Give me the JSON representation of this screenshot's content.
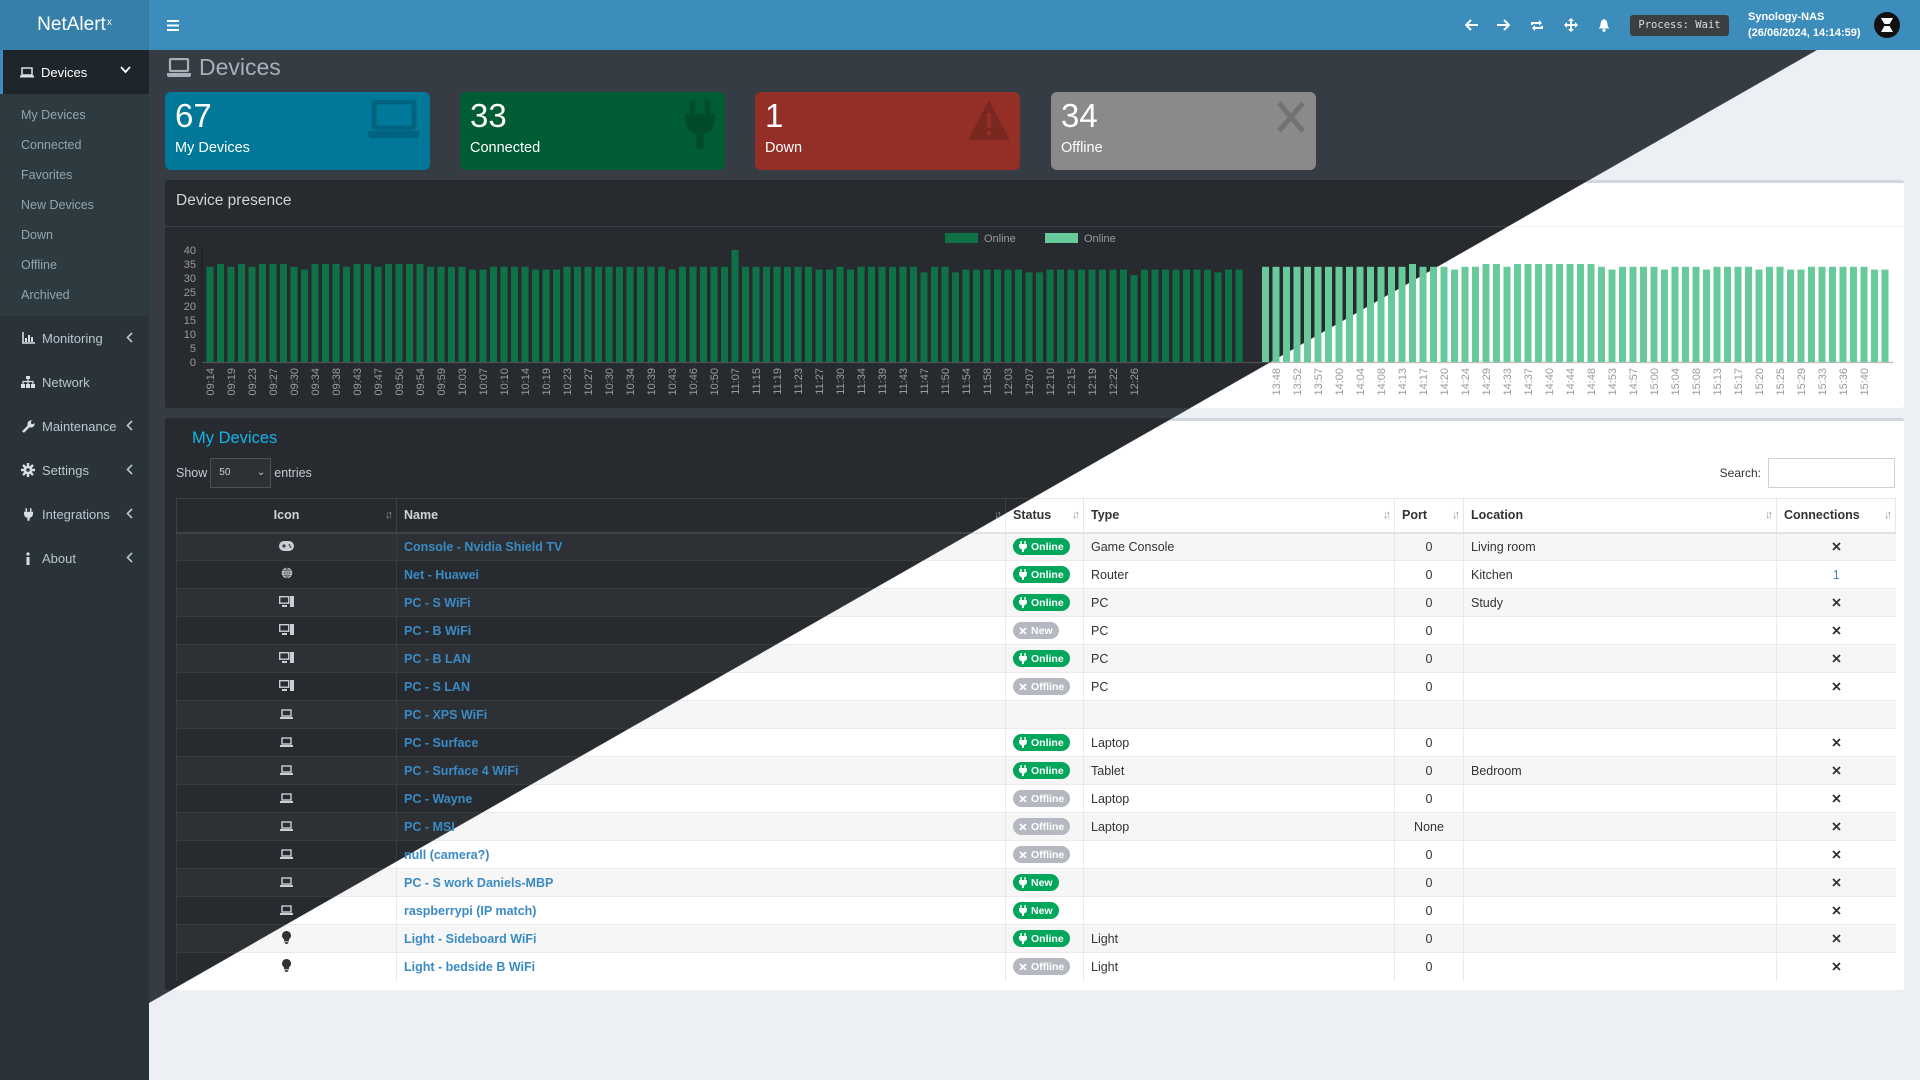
{
  "app": {
    "logo": "NetAlert",
    "logo_sup": "x"
  },
  "topbar": {
    "process": "Process: Wait",
    "host": "Synology-NAS",
    "datetime": "(26/06/2024, 14:14:59)"
  },
  "sidebar": {
    "devices": {
      "label": "Devices",
      "items": [
        "My Devices",
        "Connected",
        "Favorites",
        "New Devices",
        "Down",
        "Offline",
        "Archived"
      ]
    },
    "menu": [
      {
        "label": "Monitoring",
        "icon": "chart-icon",
        "chevron": true
      },
      {
        "label": "Network",
        "icon": "network-icon",
        "chevron": false
      },
      {
        "label": "Maintenance",
        "icon": "wrench-icon",
        "chevron": true
      },
      {
        "label": "Settings",
        "icon": "gear-icon",
        "chevron": true
      },
      {
        "label": "Integrations",
        "icon": "plug-icon",
        "chevron": true
      },
      {
        "label": "About",
        "icon": "info-icon",
        "chevron": true
      }
    ]
  },
  "page": {
    "title": "Devices"
  },
  "summary": [
    {
      "count": "67",
      "label": "My Devices",
      "color": "#01789a",
      "icon": "laptop-icon"
    },
    {
      "count": "33",
      "label": "Connected",
      "color": "#005c33",
      "icon": "plug-icon"
    },
    {
      "count": "1",
      "label": "Down",
      "color": "#932f27",
      "icon": "warning-icon"
    },
    {
      "count": "34",
      "label": "Offline",
      "color": "#8a8a8a",
      "icon": "close-icon"
    }
  ],
  "chart_data": [
    {
      "type": "bar",
      "title": "Device presence",
      "legend": [
        "Online"
      ],
      "legend_position": "top-center",
      "series_color": "#0f7247",
      "ylim": [
        0,
        40
      ],
      "yticks": [
        0,
        5,
        10,
        15,
        20,
        25,
        30,
        35,
        40
      ],
      "categories": [
        "09:14",
        "",
        "09:19",
        "",
        "09:23",
        "",
        "09:27",
        "",
        "09:30",
        "",
        "09:34",
        "",
        "09:38",
        "",
        "09:43",
        "",
        "09:47",
        "",
        "09:50",
        "",
        "09:54",
        "",
        "09:59",
        "",
        "10:03",
        "",
        "10:07",
        "",
        "10:10",
        "",
        "10:14",
        "",
        "10:19",
        "",
        "10:23",
        "",
        "10:27",
        "",
        "10:30",
        "",
        "10:34",
        "",
        "10:39",
        "",
        "10:43",
        "",
        "10:46",
        "",
        "10:50",
        "",
        "11:07",
        "",
        "11:15",
        "",
        "11:19",
        "",
        "11:23",
        "",
        "11:27",
        "",
        "11:30",
        "",
        "11:34",
        "",
        "11:39",
        "",
        "11:43",
        "",
        "11:47",
        "",
        "11:50",
        "",
        "11:54",
        "",
        "11:58",
        "",
        "12:03",
        "",
        "12:07",
        "",
        "12:10",
        "",
        "12:15",
        "",
        "12:19",
        "",
        "12:22",
        "",
        "12:26",
        "",
        "",
        "",
        "",
        "",
        "",
        "",
        "",
        "",
        ""
      ],
      "values": [
        34,
        35,
        34,
        35,
        34,
        35,
        35,
        35,
        34,
        33,
        35,
        35,
        35,
        34,
        35,
        35,
        34,
        35,
        35,
        35,
        35,
        34,
        34,
        34,
        34,
        33,
        33,
        34,
        34,
        34,
        34,
        33,
        33,
        33,
        34,
        34,
        34,
        34,
        34,
        34,
        34,
        34,
        34,
        34,
        33,
        34,
        34,
        34,
        34,
        34,
        40,
        34,
        34,
        34,
        34,
        34,
        34,
        34,
        33,
        33,
        34,
        33,
        34,
        34,
        34,
        34,
        34,
        34,
        32,
        34,
        34,
        32,
        33,
        33,
        33,
        33,
        33,
        33,
        32,
        32,
        33,
        33,
        33,
        33,
        33,
        33,
        33,
        33,
        31,
        33,
        33,
        33,
        33,
        33,
        33,
        33,
        32,
        33,
        33
      ]
    },
    {
      "type": "bar",
      "title": "Device presence",
      "legend": [
        "Online"
      ],
      "series_color": "#68c99a",
      "ylim": [
        0,
        40
      ],
      "categories": [
        "",
        "13:48",
        "",
        "13:52",
        "",
        "13:57",
        "",
        "14:00",
        "",
        "14:04",
        "",
        "14:08",
        "",
        "14:13",
        "",
        "14:17",
        "",
        "14:20",
        "",
        "14:24",
        "",
        "14:29",
        "",
        "14:33",
        "",
        "14:37",
        "",
        "14:40",
        "",
        "14:44",
        "",
        "14:48",
        "",
        "14:53",
        "",
        "14:57",
        "",
        "15:00",
        "",
        "15:04",
        "",
        "15:08",
        "",
        "15:13",
        "",
        "15:17",
        "",
        "15:20",
        "",
        "15:25",
        "",
        "15:29",
        "",
        "15:33",
        "",
        "15:36",
        "",
        "15:40",
        "",
        ""
      ],
      "values": [
        34,
        34,
        34,
        34,
        34,
        34,
        34,
        34,
        34,
        34,
        34,
        34,
        34,
        34,
        35,
        34,
        34,
        34,
        33,
        34,
        34,
        35,
        35,
        34,
        35,
        35,
        35,
        35,
        35,
        35,
        35,
        35,
        34,
        33,
        34,
        34,
        34,
        34,
        33,
        34,
        34,
        34,
        33,
        34,
        34,
        34,
        34,
        33,
        34,
        34,
        33,
        33,
        34,
        34,
        34,
        34,
        34,
        34,
        33,
        33
      ]
    }
  ],
  "table": {
    "title": "My Devices",
    "show_label": "Show",
    "page_size": "50",
    "entries_label": "entries",
    "search_label": "Search:",
    "search_value": "",
    "columns": [
      "Icon",
      "Name",
      "Status",
      "Type",
      "Port",
      "Location",
      "Connections"
    ],
    "rows": [
      {
        "icon": "gamepad",
        "name": "Console - Nvidia Shield TV",
        "status": "Online",
        "connected": true,
        "type": "Game Console",
        "port": "0",
        "location": "Living room",
        "connections": ""
      },
      {
        "icon": "globe",
        "name": "Net - Huawei",
        "status": "Online",
        "connected": true,
        "type": "Router",
        "port": "0",
        "location": "Kitchen",
        "connections": "1"
      },
      {
        "icon": "desktop",
        "name": "PC - S WiFi",
        "status": "Online",
        "connected": true,
        "type": "PC",
        "port": "0",
        "location": "Study",
        "connections": ""
      },
      {
        "icon": "desktop",
        "name": "PC - B WiFi",
        "status": "New",
        "connected": false,
        "type": "PC",
        "port": "0",
        "location": "",
        "connections": ""
      },
      {
        "icon": "desktop",
        "name": "PC - B LAN",
        "status": "Online",
        "connected": true,
        "type": "PC",
        "port": "0",
        "location": "",
        "connections": ""
      },
      {
        "icon": "desktop",
        "name": "PC - S LAN",
        "status": "Offline",
        "connected": false,
        "type": "PC",
        "port": "0",
        "location": "",
        "connections": ""
      },
      {
        "icon": "laptop",
        "name": "PC - XPS WiFi"
      },
      {
        "icon": "laptop",
        "name": "PC - Surface",
        "status": "Online",
        "connected": true,
        "type": "Laptop",
        "port": "0",
        "location": "",
        "connections": ""
      },
      {
        "icon": "laptop",
        "name": "PC - Surface 4 WiFi",
        "status": "Online",
        "connected": true,
        "type": "Tablet",
        "port": "0",
        "location": "Bedroom",
        "connections": ""
      },
      {
        "icon": "laptop",
        "name": "PC - Wayne",
        "status": "Offline",
        "connected": false,
        "type": "Laptop",
        "port": "0",
        "location": "",
        "connections": ""
      },
      {
        "icon": "laptop",
        "name": "PC - MSI",
        "status": "Offline",
        "connected": false,
        "type": "Laptop",
        "port": "None",
        "location": "",
        "connections": ""
      },
      {
        "icon": "laptop",
        "name": "null (camera?)",
        "status": "Offline",
        "connected": false,
        "type": "",
        "port": "0",
        "location": "",
        "connections": ""
      },
      {
        "icon": "laptop",
        "name": "PC - S work Daniels-MBP",
        "status": "New",
        "connected": true,
        "type": "",
        "port": "0",
        "location": "",
        "connections": ""
      },
      {
        "icon": "laptop",
        "name": "raspberrypi (IP match)",
        "status": "New",
        "connected": true,
        "type": "",
        "port": "0",
        "location": "",
        "connections": ""
      },
      {
        "icon": "bulb",
        "name": "Light - Sideboard WiFi",
        "status": "Online",
        "connected": true,
        "type": "Light",
        "port": "0",
        "location": "",
        "connections": ""
      },
      {
        "icon": "bulb",
        "name": "Light - bedside B WiFi",
        "status": "Offline",
        "connected": false,
        "type": "Light",
        "port": "0",
        "location": "",
        "connections": ""
      }
    ]
  }
}
